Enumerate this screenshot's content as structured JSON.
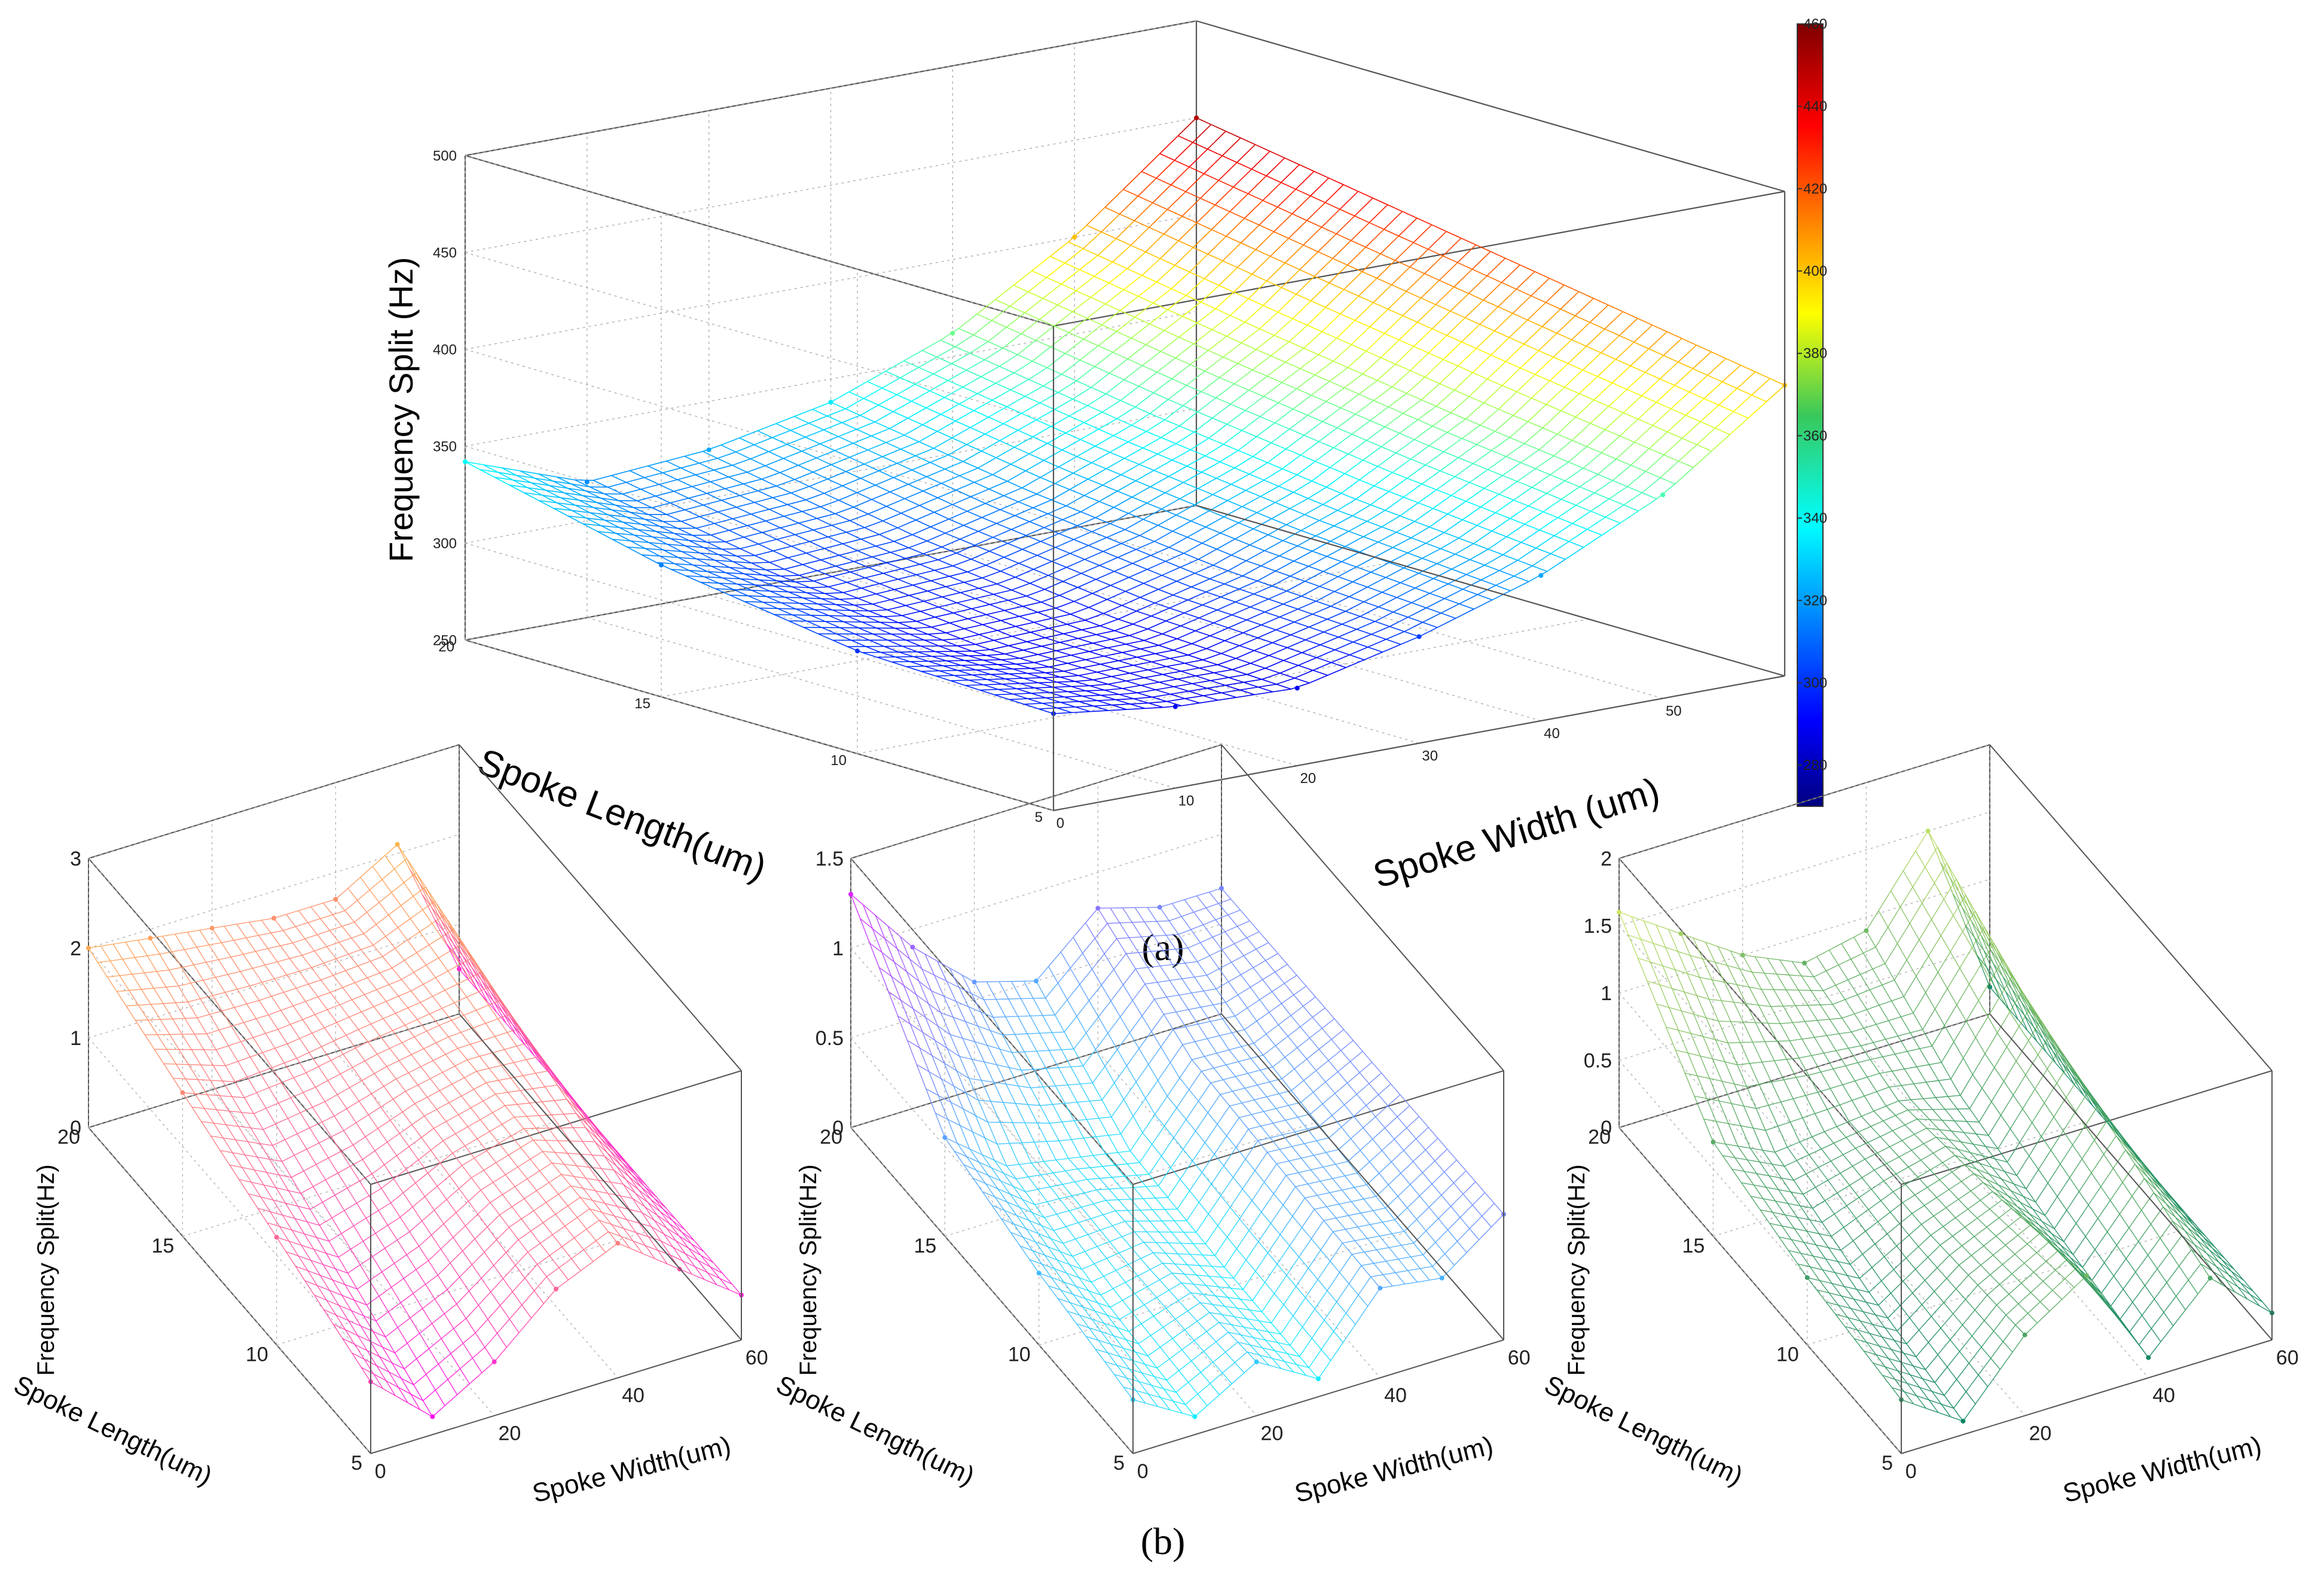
{
  "figure": {
    "caption_a": "(a)",
    "caption_b": "(b)"
  },
  "chart_data": [
    {
      "id": "a",
      "type": "surface3d",
      "colormap": "jet",
      "zlabel": "Frequency Split (Hz)",
      "ylabel": "Spoke Length(um)",
      "xlabel": "Spoke Width (um)",
      "xlim": [
        0,
        60
      ],
      "ylim": [
        5,
        20
      ],
      "zlim": [
        250,
        500
      ],
      "xticks": [
        "0",
        "10",
        "20",
        "30",
        "40",
        "50"
      ],
      "yticks": [
        "5",
        "10",
        "15",
        "20"
      ],
      "zticks": [
        "250",
        "300",
        "350",
        "400",
        "450",
        "500"
      ],
      "colorbar": {
        "range": [
          270,
          460
        ],
        "ticks": [
          "280",
          "300",
          "320",
          "340",
          "360",
          "380",
          "400",
          "420",
          "440",
          "460"
        ]
      },
      "points": [
        {
          "x": 0,
          "y": 20,
          "z": 342
        },
        {
          "x": 10,
          "y": 20,
          "z": 320
        },
        {
          "x": 20,
          "y": 20,
          "z": 325
        },
        {
          "x": 30,
          "y": 20,
          "z": 338
        },
        {
          "x": 40,
          "y": 20,
          "z": 362
        },
        {
          "x": 50,
          "y": 20,
          "z": 400
        },
        {
          "x": 60,
          "y": 20,
          "z": 450
        },
        {
          "x": 0,
          "y": 15,
          "z": 318
        },
        {
          "x": 0,
          "y": 10,
          "z": 303
        },
        {
          "x": 0,
          "y": 5,
          "z": 300
        },
        {
          "x": 10,
          "y": 5,
          "z": 292
        },
        {
          "x": 20,
          "y": 5,
          "z": 290
        },
        {
          "x": 30,
          "y": 5,
          "z": 305
        },
        {
          "x": 40,
          "y": 5,
          "z": 325
        },
        {
          "x": 50,
          "y": 5,
          "z": 355
        },
        {
          "x": 60,
          "y": 5,
          "z": 400
        }
      ]
    },
    {
      "id": "b1",
      "type": "surface3d",
      "colormap": "spring",
      "zlabel": "Frequency Split(Hz)",
      "ylabel": "Spoke Length(um)",
      "xlabel": "Spoke Width(um)",
      "xlim": [
        0,
        60
      ],
      "ylim": [
        5,
        20
      ],
      "zlim": [
        0,
        3
      ],
      "xticks": [
        "0",
        "20",
        "40",
        "60"
      ],
      "yticks": [
        "5",
        "10",
        "15",
        "20"
      ],
      "zticks": [
        "0",
        "1",
        "2",
        "3"
      ],
      "points": [
        {
          "x": 0,
          "y": 20,
          "z": 2.0
        },
        {
          "x": 10,
          "y": 20,
          "z": 1.9
        },
        {
          "x": 20,
          "y": 20,
          "z": 1.8
        },
        {
          "x": 30,
          "y": 20,
          "z": 1.7
        },
        {
          "x": 40,
          "y": 20,
          "z": 1.7
        },
        {
          "x": 50,
          "y": 20,
          "z": 2.1
        },
        {
          "x": 60,
          "y": 20,
          "z": 0.5
        },
        {
          "x": 0,
          "y": 15,
          "z": 1.6
        },
        {
          "x": 0,
          "y": 10,
          "z": 1.2
        },
        {
          "x": 0,
          "y": 5,
          "z": 0.8
        },
        {
          "x": 10,
          "y": 5,
          "z": 0.2
        },
        {
          "x": 20,
          "y": 5,
          "z": 0.6
        },
        {
          "x": 30,
          "y": 5,
          "z": 1.2
        },
        {
          "x": 40,
          "y": 5,
          "z": 1.5
        },
        {
          "x": 50,
          "y": 5,
          "z": 1.0
        },
        {
          "x": 60,
          "y": 5,
          "z": 0.5
        }
      ]
    },
    {
      "id": "b2",
      "type": "surface3d",
      "colormap": "cool",
      "zlabel": "Frequency Split(Hz)",
      "ylabel": "Spoke Length(um)",
      "xlabel": "Spoke Width(um)",
      "xlim": [
        0,
        60
      ],
      "ylim": [
        5,
        20
      ],
      "zlim": [
        0,
        1.5
      ],
      "xticks": [
        "0",
        "20",
        "40",
        "60"
      ],
      "yticks": [
        "5",
        "10",
        "15",
        "20"
      ],
      "zticks": [
        "0",
        "0.5",
        "1",
        "1.5"
      ],
      "points": [
        {
          "x": 0,
          "y": 20,
          "z": 1.3
        },
        {
          "x": 10,
          "y": 20,
          "z": 0.9
        },
        {
          "x": 20,
          "y": 20,
          "z": 0.6
        },
        {
          "x": 30,
          "y": 20,
          "z": 0.5
        },
        {
          "x": 40,
          "y": 20,
          "z": 0.8
        },
        {
          "x": 50,
          "y": 20,
          "z": 0.7
        },
        {
          "x": 60,
          "y": 20,
          "z": 0.7
        },
        {
          "x": 0,
          "y": 15,
          "z": 0.55
        },
        {
          "x": 0,
          "y": 10,
          "z": 0.4
        },
        {
          "x": 0,
          "y": 5,
          "z": 0.3
        },
        {
          "x": 10,
          "y": 5,
          "z": 0.1
        },
        {
          "x": 20,
          "y": 5,
          "z": 0.3
        },
        {
          "x": 30,
          "y": 5,
          "z": 0.1
        },
        {
          "x": 40,
          "y": 5,
          "z": 0.5
        },
        {
          "x": 50,
          "y": 5,
          "z": 0.45
        },
        {
          "x": 60,
          "y": 5,
          "z": 0.7
        }
      ]
    },
    {
      "id": "b3",
      "type": "surface3d",
      "colormap": "summer",
      "zlabel": "Frequency Split(Hz)",
      "ylabel": "Spoke Length(um)",
      "xlabel": "Spoke Width(um)",
      "xlim": [
        0,
        60
      ],
      "ylim": [
        5,
        20
      ],
      "zlim": [
        0,
        2
      ],
      "xticks": [
        "0",
        "20",
        "40",
        "60"
      ],
      "yticks": [
        "5",
        "10",
        "15",
        "20"
      ],
      "zticks": [
        "0",
        "0.5",
        "1",
        "1.5",
        "2"
      ],
      "points": [
        {
          "x": 0,
          "y": 20,
          "z": 1.6
        },
        {
          "x": 10,
          "y": 20,
          "z": 1.3
        },
        {
          "x": 20,
          "y": 20,
          "z": 1.0
        },
        {
          "x": 30,
          "y": 20,
          "z": 0.8
        },
        {
          "x": 40,
          "y": 20,
          "z": 0.9
        },
        {
          "x": 50,
          "y": 20,
          "z": 1.5
        },
        {
          "x": 60,
          "y": 20,
          "z": 0.2
        },
        {
          "x": 0,
          "y": 15,
          "z": 0.7
        },
        {
          "x": 0,
          "y": 10,
          "z": 0.5
        },
        {
          "x": 0,
          "y": 5,
          "z": 0.4
        },
        {
          "x": 10,
          "y": 5,
          "z": 0.1
        },
        {
          "x": 20,
          "y": 5,
          "z": 0.6
        },
        {
          "x": 30,
          "y": 5,
          "z": 0.9
        },
        {
          "x": 40,
          "y": 5,
          "z": 0.15
        },
        {
          "x": 50,
          "y": 5,
          "z": 0.6
        },
        {
          "x": 60,
          "y": 5,
          "z": 0.2
        }
      ]
    }
  ]
}
